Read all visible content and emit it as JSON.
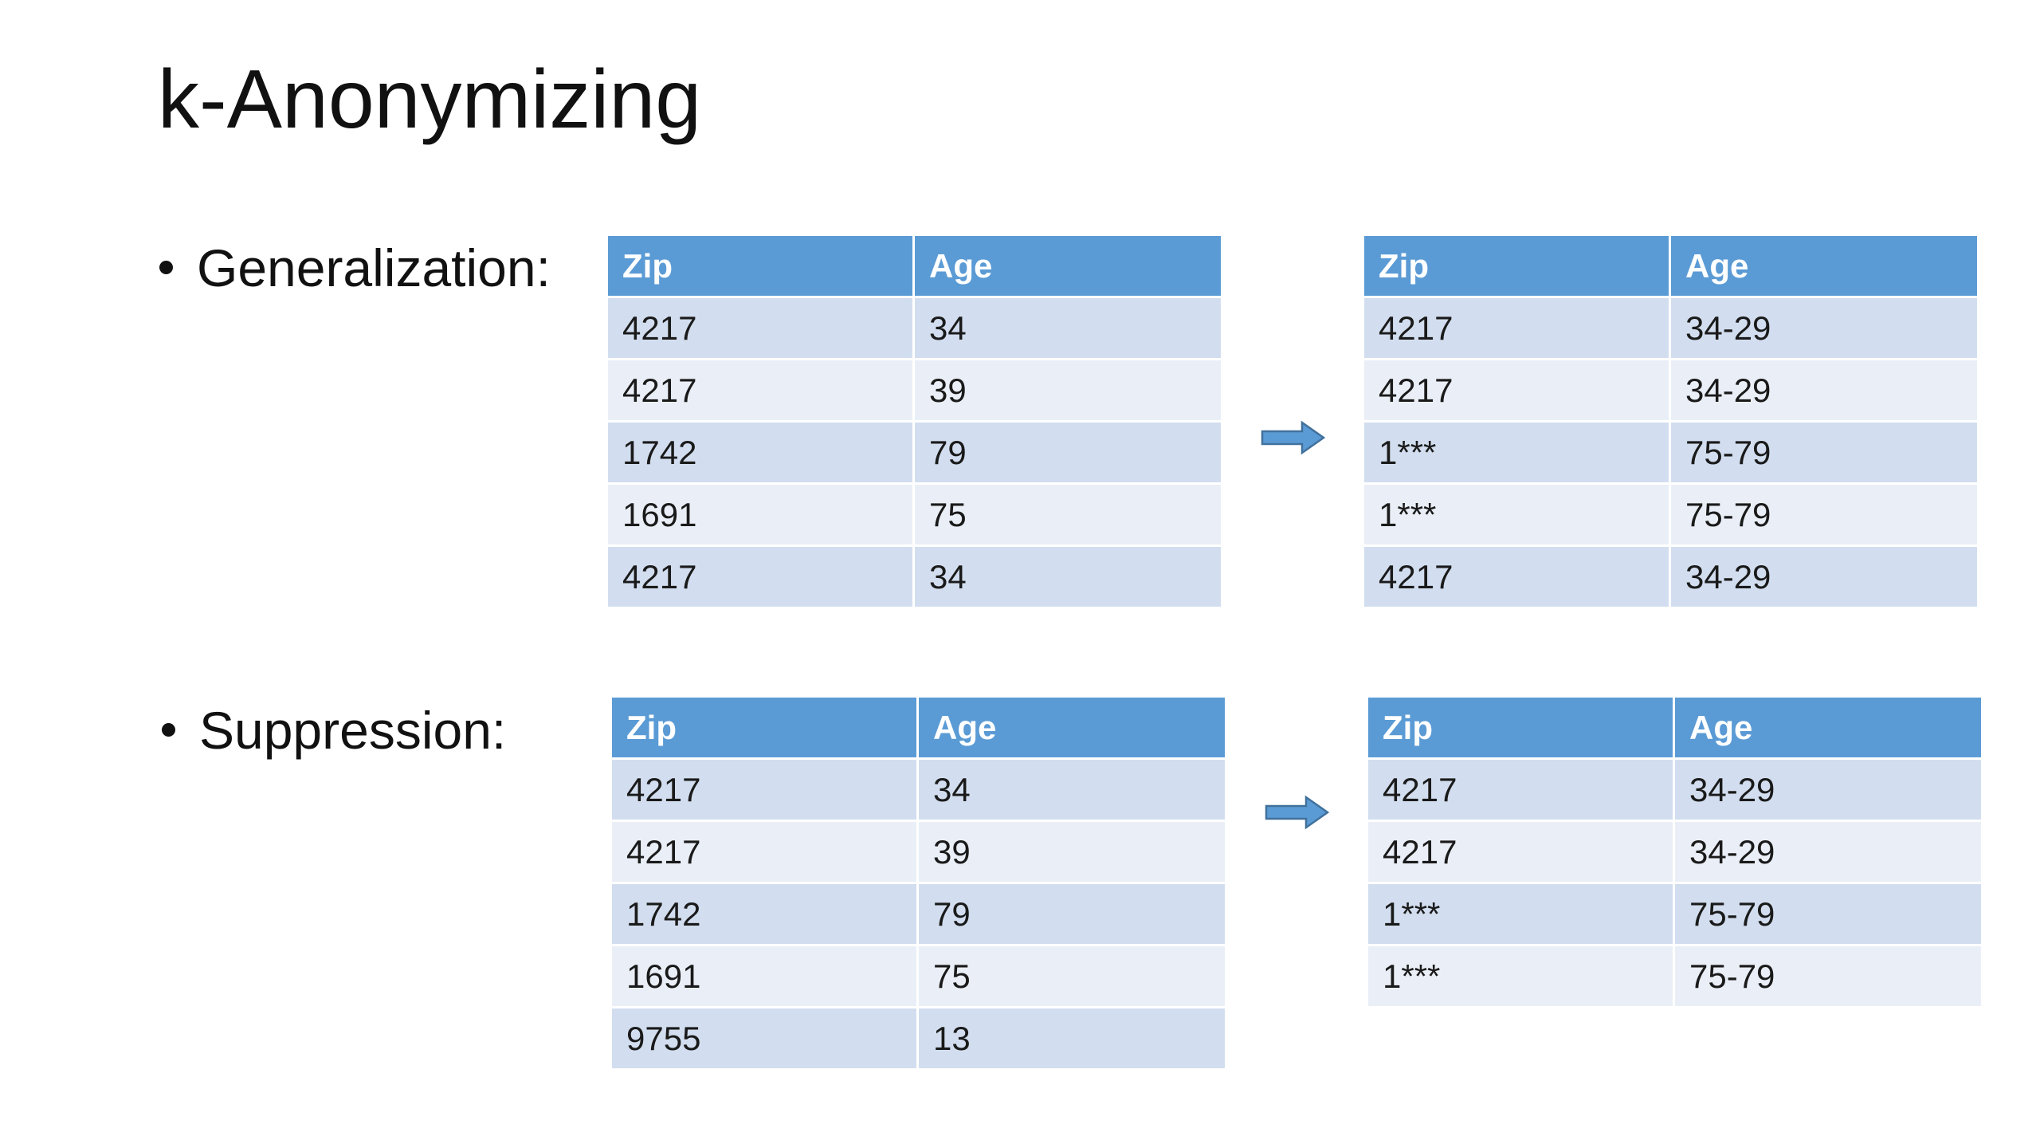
{
  "title": "k-Anonymizing",
  "accent_color": "#5b9bd5",
  "sections": [
    {
      "label": "Generalization:",
      "arrow_icon": "right-arrow-icon",
      "left_table": {
        "headers": [
          "Zip",
          "Age"
        ],
        "rows": [
          [
            "4217",
            "34"
          ],
          [
            "4217",
            "39"
          ],
          [
            "1742",
            "79"
          ],
          [
            "1691",
            "75"
          ],
          [
            "4217",
            "34"
          ]
        ]
      },
      "right_table": {
        "headers": [
          "Zip",
          "Age"
        ],
        "rows": [
          [
            "4217",
            "34-29"
          ],
          [
            "4217",
            "34-29"
          ],
          [
            "1***",
            "75-79"
          ],
          [
            "1***",
            "75-79"
          ],
          [
            "4217",
            "34-29"
          ]
        ]
      }
    },
    {
      "label": "Suppression:",
      "arrow_icon": "right-arrow-icon",
      "left_table": {
        "headers": [
          "Zip",
          "Age"
        ],
        "rows": [
          [
            "4217",
            "34"
          ],
          [
            "4217",
            "39"
          ],
          [
            "1742",
            "79"
          ],
          [
            "1691",
            "75"
          ],
          [
            "9755",
            "13"
          ]
        ]
      },
      "right_table": {
        "headers": [
          "Zip",
          "Age"
        ],
        "rows": [
          [
            "4217",
            "34-29"
          ],
          [
            "4217",
            "34-29"
          ],
          [
            "1***",
            "75-79"
          ],
          [
            "1***",
            "75-79"
          ]
        ]
      }
    }
  ]
}
